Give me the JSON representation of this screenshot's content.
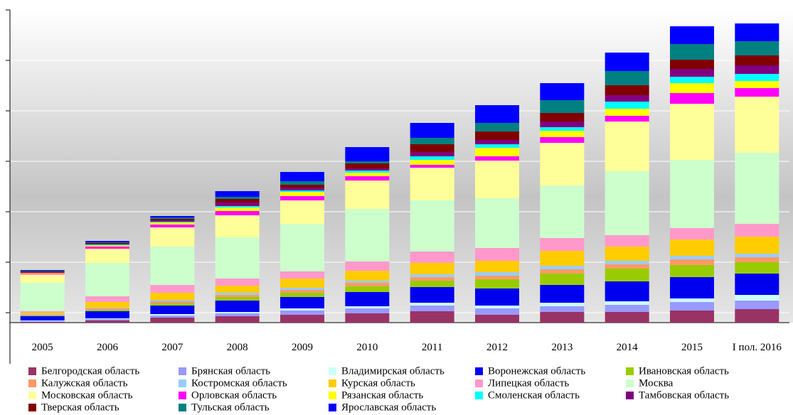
{
  "chart_data": {
    "type": "stacked_bar",
    "categories": [
      "2005",
      "2006",
      "2007",
      "2008",
      "2009",
      "2010",
      "2011",
      "2012",
      "2013",
      "2014",
      "2015",
      "I пол. 2016"
    ],
    "ylim": [
      0,
      44
    ],
    "yticks": [
      1.4,
      8.5,
      15.6,
      22.7,
      29.8,
      36.9,
      44
    ],
    "grid": true,
    "series": [
      {
        "name": "Белгородская область",
        "color": "#993366",
        "values": [
          0.1,
          0.3,
          0.7,
          0.9,
          1.1,
          1.3,
          1.6,
          1.1,
          1.5,
          1.5,
          1.7,
          1.9
        ]
      },
      {
        "name": "Брянская область",
        "color": "#9999ff",
        "values": [
          0.1,
          0.2,
          0.3,
          0.4,
          0.6,
          0.7,
          0.8,
          0.9,
          0.8,
          1.0,
          1.2,
          1.2
        ]
      },
      {
        "name": "Владимирская область",
        "color": "#ccffff",
        "values": [
          0.1,
          0.1,
          0.2,
          0.2,
          0.3,
          0.3,
          0.4,
          0.4,
          0.5,
          0.5,
          0.5,
          0.8
        ]
      },
      {
        "name": "Воронежская область",
        "color": "#0000ee",
        "values": [
          0.6,
          1.0,
          1.2,
          1.6,
          1.6,
          2.0,
          2.2,
          2.4,
          2.5,
          2.8,
          3.0,
          3.0
        ]
      },
      {
        "name": "Ивановская область",
        "color": "#99cc00",
        "values": [
          0.1,
          0.2,
          0.3,
          0.5,
          0.6,
          0.8,
          0.9,
          1.3,
          1.6,
          1.8,
          1.7,
          1.6
        ]
      },
      {
        "name": "Калужская область",
        "color": "#ff9966",
        "values": [
          0.1,
          0.2,
          0.3,
          0.3,
          0.4,
          0.5,
          0.5,
          0.5,
          0.6,
          0.6,
          0.8,
          0.7
        ]
      },
      {
        "name": "Костромская область",
        "color": "#99ccff",
        "values": [
          0.1,
          0.1,
          0.2,
          0.3,
          0.3,
          0.3,
          0.4,
          0.5,
          0.5,
          0.5,
          0.5,
          0.5
        ]
      },
      {
        "name": "Курская область",
        "color": "#ffcc00",
        "values": [
          0.2,
          0.8,
          1.0,
          1.0,
          1.3,
          1.4,
          1.6,
          1.6,
          2.1,
          2.0,
          2.3,
          2.4
        ]
      },
      {
        "name": "Липецкая область",
        "color": "#ff99cc",
        "values": [
          0.2,
          0.8,
          1.1,
          1.0,
          1.0,
          1.3,
          1.6,
          1.8,
          1.8,
          1.6,
          1.6,
          1.8
        ]
      },
      {
        "name": "Москва",
        "color": "#ccffcc",
        "values": [
          4.0,
          4.7,
          5.4,
          5.8,
          6.7,
          7.4,
          7.2,
          7.0,
          7.4,
          9.0,
          9.6,
          10.0
        ]
      },
      {
        "name": "Московская область",
        "color": "#ffff99",
        "values": [
          1.2,
          2.0,
          2.7,
          3.1,
          3.3,
          4.0,
          4.6,
          5.3,
          6.0,
          7.0,
          7.9,
          7.9
        ]
      },
      {
        "name": "Орловская область",
        "color": "#ff00ff",
        "values": [
          0.1,
          0.3,
          0.4,
          0.6,
          0.6,
          0.6,
          0.4,
          0.6,
          0.8,
          0.8,
          1.5,
          1.2
        ]
      },
      {
        "name": "Рязанская область",
        "color": "#ffff00",
        "values": [
          0.1,
          0.2,
          0.3,
          0.5,
          0.6,
          0.5,
          0.7,
          1.2,
          0.9,
          1.0,
          1.4,
          1.0
        ]
      },
      {
        "name": "Смоленская область",
        "color": "#00ffff",
        "values": [
          0.0,
          0.1,
          0.1,
          0.2,
          0.2,
          0.3,
          0.5,
          0.5,
          0.5,
          1.0,
          0.9,
          1.0
        ]
      },
      {
        "name": "Тамбовская область",
        "color": "#800080",
        "values": [
          0.1,
          0.1,
          0.2,
          0.5,
          0.4,
          0.3,
          0.6,
          0.6,
          0.8,
          0.9,
          1.1,
          1.2
        ]
      },
      {
        "name": "Тверская область",
        "color": "#800000",
        "values": [
          0.1,
          0.1,
          0.2,
          0.5,
          0.4,
          0.7,
          1.1,
          1.2,
          1.2,
          1.4,
          1.3,
          1.4
        ]
      },
      {
        "name": "Тульская область",
        "color": "#008080",
        "values": [
          0.1,
          0.1,
          0.2,
          0.3,
          0.5,
          0.3,
          0.9,
          1.2,
          1.8,
          2.0,
          2.2,
          2.0
        ]
      },
      {
        "name": "Ярославская область",
        "color": "#0000ff",
        "values": [
          0.1,
          0.2,
          0.2,
          0.8,
          1.3,
          2.0,
          2.1,
          2.5,
          2.4,
          2.6,
          2.5,
          2.5
        ]
      }
    ]
  }
}
